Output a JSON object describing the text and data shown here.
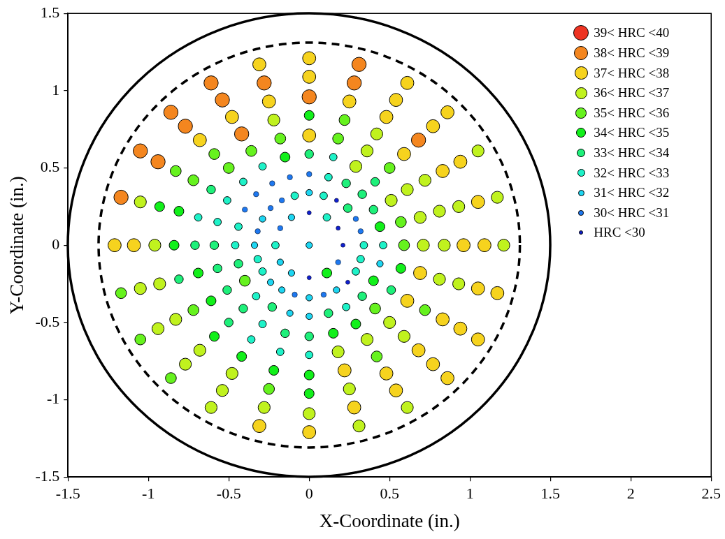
{
  "chart_data": {
    "type": "scatter",
    "xlabel": "X-Coordinate (in.)",
    "ylabel": "Y-Coordinate (in.)",
    "xlim": [
      -1.5,
      2.5
    ],
    "xticks": [
      -1.5,
      -1,
      -0.5,
      0,
      0.5,
      1,
      1.5,
      2,
      2.5
    ],
    "ylim": [
      -1.5,
      1.5
    ],
    "yticks": [
      -1.5,
      -1,
      -0.5,
      0,
      0.5,
      1,
      1.5
    ],
    "grid": false,
    "legend": "top right",
    "marker": "circle",
    "series": [
      {
        "name": "39< HRC <40",
        "color": "#ee3322"
      },
      {
        "name": "38< HRC <39",
        "color": "#f4861f",
        "x": [
          -0.42,
          0.68,
          0,
          0.28,
          -0.28,
          -0.54,
          -0.77,
          -0.94,
          0.31,
          -0.61,
          -0.86,
          -1.05,
          -1.17
        ],
        "values": [
          0.72,
          0.68,
          0.96,
          1.05,
          1.05,
          0.94,
          0.77,
          0.54,
          1.17,
          1.05,
          0.86,
          0.61,
          0.31
        ]
      },
      {
        "name": "37< HRC <38",
        "color": "#f6d31e",
        "x": [
          0,
          0.61,
          0.69,
          0.59,
          0.22,
          0.96,
          0.83,
          0.48,
          0.25,
          -0.25,
          -0.48,
          -0.68,
          0.48,
          0.68,
          0.83,
          1.09,
          1.05,
          0.94,
          0.77,
          0.54,
          0,
          -1.09,
          0.28,
          0.54,
          0.77,
          0.94,
          1.05,
          0.86,
          0.61,
          0,
          -0.31,
          -1.21,
          -0.31,
          0,
          0.86,
          1.05,
          1.17
        ],
        "values": [
          0.71,
          -0.36,
          -0.18,
          0.59,
          -0.81,
          0,
          0.48,
          0.83,
          0.93,
          0.93,
          0.83,
          0.68,
          -0.83,
          -0.68,
          -0.48,
          0,
          0.28,
          0.54,
          0.77,
          0.94,
          1.09,
          0,
          -1.05,
          -0.94,
          -0.77,
          -0.54,
          -0.28,
          0.86,
          1.05,
          1.21,
          1.17,
          0,
          -1.17,
          -1.21,
          -0.86,
          -0.61,
          -0.31
        ]
      },
      {
        "name": "36< HRC <37",
        "color": "#c0f21e",
        "x": [
          0.51,
          0.29,
          0.71,
          0.69,
          0.61,
          0.36,
          0.18,
          0.36,
          0.5,
          0.84,
          0.81,
          0.72,
          0.42,
          -0.22,
          0.59,
          0.81,
          0.93,
          -0.96,
          -0.93,
          -0.83,
          -0.68,
          -0.48,
          0.25,
          0.93,
          -1.05,
          -1.05,
          -0.94,
          -0.77,
          -0.54,
          -0.28,
          0,
          1.21,
          1.17,
          1.05,
          -0.61,
          0.31,
          0.61
        ],
        "values": [
          0.29,
          0.51,
          0,
          0.18,
          0.36,
          0.61,
          -0.69,
          -0.61,
          -0.5,
          0,
          0.22,
          0.42,
          0.72,
          0.81,
          -0.59,
          -0.22,
          0.25,
          0,
          -0.25,
          -0.48,
          -0.68,
          -0.83,
          -0.93,
          -0.25,
          0.28,
          -0.28,
          -0.54,
          -0.77,
          -0.94,
          -1.05,
          -1.09,
          0,
          0.31,
          0.61,
          -1.05,
          -1.17,
          -1.05
        ]
      },
      {
        "name": "35< HRC <36",
        "color": "#66f21e",
        "x": [
          -0.4,
          0.59,
          0.57,
          0.41,
          0.5,
          0.18,
          -0.18,
          -0.36,
          -0.5,
          0.22,
          -0.59,
          -0.72,
          -0.72,
          0.42,
          0.72,
          -0.83,
          -0.25,
          -1.17,
          -1.05,
          -0.86
        ],
        "values": [
          -0.23,
          0,
          0.15,
          -0.41,
          0.5,
          0.69,
          0.69,
          0.61,
          0.5,
          0.81,
          0.59,
          0.42,
          -0.42,
          -0.72,
          -0.42,
          0.48,
          -0.93,
          -0.31,
          -0.61,
          -0.86
        ]
      },
      {
        "name": "34< HRC <35",
        "color": "#12f01a",
        "x": [
          0.11,
          0.44,
          0.4,
          -0.15,
          0.15,
          0.29,
          0.57,
          -0.69,
          -0.61,
          0,
          -0.81,
          -0.84,
          -0.59,
          -0.42,
          -0.22,
          0,
          -0.93,
          0
        ],
        "values": [
          -0.18,
          0.12,
          -0.23,
          0.57,
          -0.57,
          -0.51,
          -0.15,
          -0.18,
          -0.36,
          0.84,
          0.22,
          0,
          -0.59,
          -0.72,
          -0.81,
          -0.84,
          0.25,
          -0.96
        ]
      },
      {
        "name": "33< HRC <34",
        "color": "#1ef07a",
        "x": [
          0.24,
          0.4,
          0.33,
          0.23,
          -0.44,
          -0.23,
          0.12,
          0.33,
          0.41,
          0,
          -0.59,
          -0.57,
          -0.51,
          -0.41,
          -0.15,
          0,
          0.51,
          -0.61,
          -0.71,
          -0.5,
          -0.81
        ],
        "values": [
          0.24,
          0.23,
          0.33,
          0.4,
          -0.12,
          -0.4,
          -0.44,
          -0.33,
          0.41,
          0.59,
          0,
          -0.15,
          -0.29,
          -0.41,
          -0.57,
          -0.59,
          -0.29,
          0.36,
          0,
          -0.5,
          -0.22
        ]
      },
      {
        "name": "32< HRC <33",
        "color": "#1ef2c8",
        "x": [
          0.11,
          -0.21,
          0.34,
          0.09,
          -0.09,
          -0.32,
          -0.29,
          0.29,
          0.32,
          0.46,
          0.12,
          -0.44,
          -0.46,
          -0.33,
          0.23,
          0.15,
          -0.29,
          -0.41,
          -0.51,
          -0.57,
          -0.29,
          -0.69,
          -0.36,
          -0.18,
          0
        ],
        "values": [
          0.18,
          0,
          0,
          0.32,
          0.32,
          -0.09,
          -0.17,
          -0.17,
          -0.09,
          0,
          0.44,
          0.12,
          0,
          -0.33,
          -0.4,
          0.57,
          0.51,
          0.41,
          0.29,
          0.15,
          -0.51,
          0.18,
          -0.61,
          -0.69,
          -0.71
        ]
      },
      {
        "name": "31< HRC <32",
        "color": "#1ed6f2",
        "x": [
          0,
          -0.11,
          -0.18,
          -0.11,
          0,
          -0.29,
          -0.34,
          -0.24,
          -0.17,
          0,
          0.17,
          -0.12,
          0,
          0.44
        ],
        "values": [
          0,
          0.18,
          -0.11,
          -0.18,
          0.34,
          0.17,
          0,
          -0.24,
          -0.29,
          -0.34,
          -0.29,
          -0.44,
          -0.46,
          -0.12
        ]
      },
      {
        "name": "30< HRC <31",
        "color": "#1e78f0",
        "x": [
          -0.18,
          0.18,
          0.32,
          0.29,
          -0.17,
          -0.24,
          -0.32,
          -0.09,
          0.09,
          0,
          -0.12,
          -0.23,
          -0.33,
          -0.4
        ],
        "values": [
          0.11,
          -0.11,
          0.09,
          0.17,
          0.29,
          0.24,
          0.09,
          -0.32,
          -0.32,
          0.46,
          0.44,
          0.4,
          0.33,
          0.23
        ]
      },
      {
        "name": "HRC <30",
        "color": "#1020d0",
        "x": [
          0.21,
          0.18,
          0,
          0,
          0.17,
          0.24
        ],
        "values": [
          0,
          0.11,
          0.21,
          -0.21,
          0.29,
          -0.24
        ]
      }
    ]
  }
}
